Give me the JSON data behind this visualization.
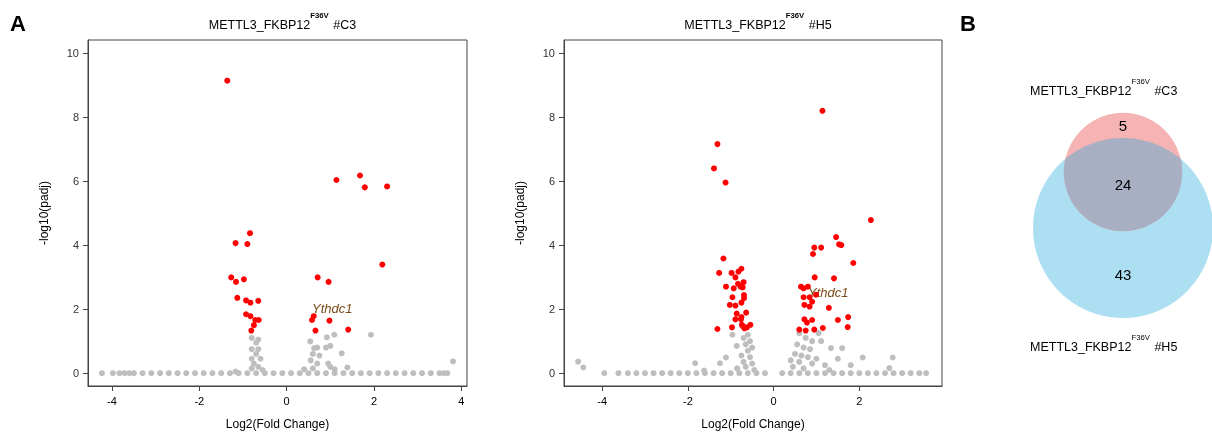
{
  "chart_data": [
    {
      "type": "scatter",
      "title": "METTL3_FKBP12$^{F36V}$ #C3",
      "xlabel": "Log2(Fold Change)",
      "ylabel": "-log10(padj)",
      "xlim": [
        -4.55,
        4.13
      ],
      "ylim": [
        -0.4,
        10.4
      ],
      "xticks": [
        -4,
        -2,
        0,
        2,
        4
      ],
      "yticks": [
        0,
        2,
        4,
        6,
        8,
        10
      ],
      "marker": "circle",
      "annotations": [
        "A",
        "Ythdc1"
      ],
      "series": [
        {
          "color": "#bebebe",
          "x": [
            -4.23,
            -3.98,
            -3.83,
            -3.71,
            -3.6,
            -3.5,
            -3.3,
            -3.1,
            -2.9,
            -2.7,
            -2.5,
            -2.3,
            -2.1,
            -1.9,
            -1.7,
            -1.5,
            -1.3,
            -1.1,
            -0.9,
            -0.7,
            -0.5,
            -0.3,
            -0.1,
            0.1,
            0.3,
            0.5,
            0.7,
            0.9,
            1.1,
            1.3,
            1.5,
            1.7,
            1.9,
            2.1,
            2.3,
            2.5,
            2.7,
            2.9,
            3.1,
            3.3,
            3.5,
            3.6,
            3.68,
            -0.8,
            -0.65,
            -0.7,
            -0.8,
            -0.65,
            -0.7,
            -0.8,
            -0.6,
            -0.75,
            -0.65,
            -0.8,
            -0.55,
            -1.17,
            0.54,
            0.63,
            0.7,
            0.9,
            1.0,
            0.6,
            0.75,
            0.55,
            0.7,
            0.95,
            0.4,
            0.6,
            1.1,
            1.0,
            1.93,
            1.09,
            0.92,
            1.26,
            1.39,
            3.81
          ],
          "values": [
            0,
            0,
            0,
            0,
            0,
            0,
            0,
            0,
            0,
            0,
            0,
            0,
            0,
            0,
            0,
            0,
            0,
            0,
            0,
            0,
            0,
            0,
            0,
            0,
            0,
            0,
            0,
            0,
            0,
            0,
            0,
            0,
            0,
            0,
            0,
            0,
            0,
            0,
            0,
            0,
            0,
            0,
            0,
            1.1,
            1.05,
            0.95,
            0.75,
            0.75,
            0.6,
            0.45,
            0.45,
            0.3,
            0.2,
            0.15,
            0.1,
            0.05,
            0.99,
            0.78,
            0.8,
            0.8,
            0.85,
            0.6,
            0.55,
            0.4,
            0.3,
            0.3,
            0.12,
            0.15,
            0.12,
            0.2,
            1.2,
            1.2,
            1.12,
            0.62,
            0.18,
            0.37
          ]
        },
        {
          "color": "#ff0000",
          "x": [
            -1.36,
            1.14,
            1.68,
            1.79,
            2.3,
            -0.84,
            -1.17,
            -0.9,
            2.19,
            -1.27,
            -1.16,
            -0.98,
            0.71,
            0.96,
            -1.13,
            -0.93,
            -0.83,
            -0.65,
            -0.93,
            -0.83,
            -0.72,
            -0.64,
            -0.75,
            -0.81,
            0.62,
            0.58,
            0.98,
            0.66,
            1.41
          ],
          "values": [
            9.13,
            6.03,
            6.17,
            5.8,
            5.83,
            4.37,
            4.06,
            4.03,
            3.39,
            2.99,
            2.85,
            2.93,
            2.99,
            2.85,
            2.35,
            2.27,
            2.2,
            2.26,
            1.84,
            1.78,
            1.66,
            1.66,
            1.5,
            1.33,
            1.78,
            1.66,
            1.64,
            1.33,
            1.36
          ]
        }
      ]
    },
    {
      "type": "scatter",
      "title": "METTL3_FKBP12$^{F36V}$ #H5",
      "xlabel": "Log2(Fold Change)",
      "ylabel": "-log10(padj)",
      "xlim": [
        -4.89,
        3.93
      ],
      "ylim": [
        -0.4,
        10.4
      ],
      "xticks": [
        -4,
        -2,
        0,
        2
      ],
      "yticks": [
        0,
        2,
        4,
        6,
        8,
        10
      ],
      "marker": "circle",
      "annotations": [
        "Ythdc1"
      ],
      "series": [
        {
          "color": "#bebebe",
          "x": [
            -3.95,
            -3.62,
            -3.4,
            -3.2,
            -3.0,
            -2.8,
            -2.6,
            -2.4,
            -2.2,
            -2.0,
            -1.8,
            -1.6,
            -1.4,
            -1.2,
            -1.0,
            -0.8,
            -0.6,
            -0.4,
            -0.2,
            0.2,
            0.4,
            0.6,
            0.8,
            1.0,
            1.2,
            1.4,
            1.6,
            1.8,
            2.0,
            2.2,
            2.4,
            2.6,
            2.8,
            3.0,
            3.2,
            3.4,
            3.56,
            -4.56,
            -4.44,
            -1.83,
            -1.62,
            -1.25,
            -1.11,
            -0.96,
            -0.86,
            -0.6,
            -0.7,
            -0.55,
            -0.65,
            -0.5,
            -0.6,
            -0.75,
            -0.55,
            -0.7,
            -0.5,
            -0.65,
            -0.85,
            -0.45,
            0.6,
            0.75,
            0.9,
            1.11,
            1.05,
            0.55,
            0.7,
            0.85,
            0.5,
            0.65,
            0.8,
            1.0,
            0.4,
            0.6,
            0.9,
            0.45,
            0.7,
            1.2,
            1.34,
            1.6,
            1.5,
            1.8,
            2.08,
            2.78,
            2.7,
            1.3
          ],
          "values": [
            0,
            0,
            0,
            0,
            0,
            0,
            0,
            0,
            0,
            0,
            0,
            0,
            0,
            0,
            0,
            0,
            0,
            0,
            0,
            0,
            0,
            0,
            0,
            0,
            0,
            0,
            0,
            0,
            0,
            0,
            0,
            0,
            0,
            0,
            0,
            0,
            0,
            0.36,
            0.18,
            0.31,
            0.08,
            0.31,
            0.49,
            1.2,
            0.85,
            1.2,
            1.1,
            1.0,
            0.9,
            0.8,
            0.7,
            0.55,
            0.5,
            0.35,
            0.3,
            0.2,
            0.15,
            0.1,
            1.25,
            1.1,
            1.0,
            1.0,
            1.25,
            0.9,
            0.8,
            0.75,
            0.6,
            0.55,
            0.5,
            0.45,
            0.4,
            0.35,
            0.3,
            0.2,
            0.15,
            0.25,
            0.78,
            0.78,
            0.45,
            0.25,
            0.49,
            0.49,
            0.16,
            0.1
          ]
        },
        {
          "color": "#ff0000",
          "x": [
            1.14,
            -1.31,
            -1.39,
            -1.12,
            2.27,
            1.46,
            1.53,
            1.58,
            0.95,
            1.11,
            0.92,
            1.86,
            -1.17,
            -1.27,
            -0.98,
            -0.82,
            -0.75,
            -0.89,
            -0.83,
            -0.77,
            -0.7,
            -0.72,
            -1.11,
            -0.93,
            -0.96,
            -0.69,
            -0.69,
            -1.02,
            -0.89,
            -0.75,
            -0.86,
            -0.64,
            -0.89,
            -0.75,
            -0.76,
            -0.74,
            -0.71,
            -0.54,
            -0.62,
            -0.68,
            -0.97,
            -1.31,
            0.64,
            0.7,
            0.8,
            0.96,
            0.7,
            0.84,
            0.9,
            0.99,
            0.72,
            0.84,
            1.41,
            1.29,
            0.72,
            0.78,
            0.9,
            0.6,
            0.75,
            0.95,
            1.15,
            1.5,
            1.74,
            1.73
          ],
          "values": [
            8.19,
            7.15,
            6.39,
            5.95,
            4.78,
            4.25,
            4.02,
            4.0,
            3.92,
            3.92,
            3.72,
            3.44,
            3.58,
            3.13,
            3.13,
            3.17,
            3.26,
            2.99,
            2.79,
            2.7,
            2.84,
            2.68,
            2.7,
            2.65,
            2.37,
            2.44,
            2.34,
            2.13,
            2.11,
            2.2,
            1.86,
            1.89,
            1.68,
            1.75,
            1.68,
            1.51,
            1.46,
            1.51,
            1.43,
            1.4,
            1.43,
            1.38,
            2.7,
            2.65,
            2.7,
            2.99,
            2.37,
            2.37,
            2.23,
            2.45,
            2.13,
            2.08,
            2.96,
            2.04,
            1.68,
            1.58,
            1.66,
            1.36,
            1.33,
            1.36,
            1.41,
            1.66,
            1.75,
            1.44
          ]
        }
      ]
    },
    {
      "type": "other",
      "annotations": [
        "B",
        "METTL3_FKBP12$^{F36V}$ #C3",
        "METTL3_FKBP12$^{F36V}$ #H5"
      ],
      "categories": [
        null,
        null,
        null
      ],
      "values": [
        5,
        24,
        43
      ],
      "colors": [
        "#f5b3b3",
        "#a9afc3",
        "#addff2"
      ],
      "data_labels": true
    }
  ]
}
